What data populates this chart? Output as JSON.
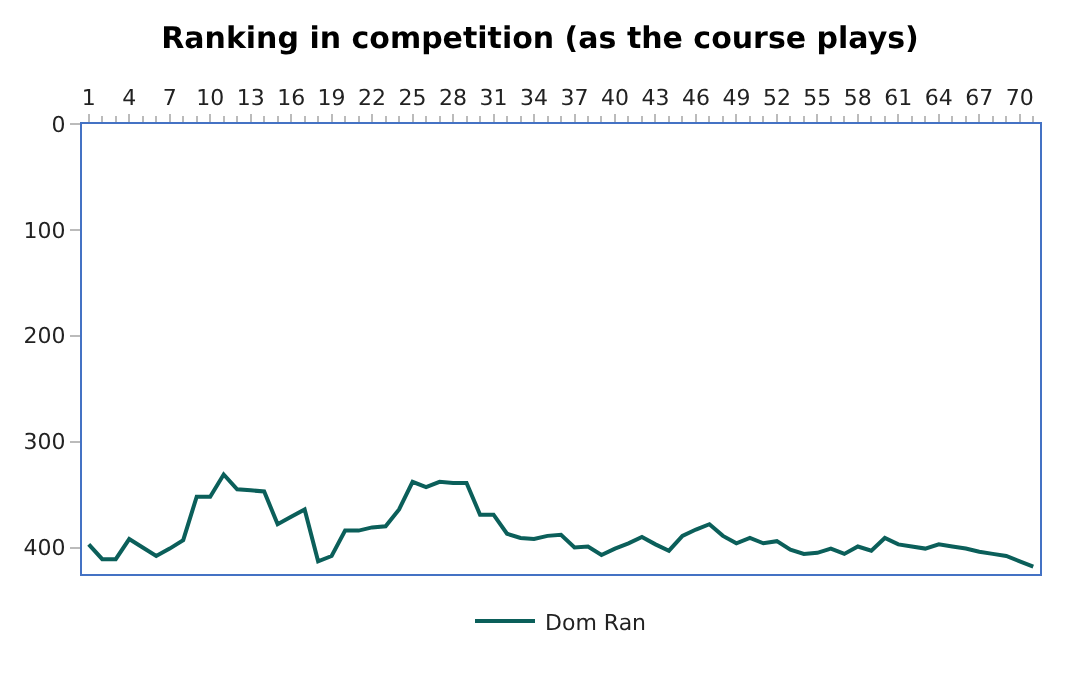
{
  "chart_data": {
    "type": "line",
    "title": "Ranking in competition (as the course plays)",
    "categories": [
      "1",
      null,
      null,
      "4",
      null,
      null,
      "7",
      null,
      null,
      "10",
      null,
      null,
      "13",
      null,
      null,
      "16",
      null,
      null,
      "19",
      null,
      null,
      "22",
      null,
      null,
      "25",
      null,
      null,
      "28",
      null,
      null,
      "31",
      null,
      null,
      "34",
      null,
      null,
      "37",
      null,
      null,
      "40",
      null,
      null,
      "43",
      null,
      null,
      "46",
      null,
      null,
      "49",
      null,
      null,
      "52",
      null,
      null,
      "55",
      null,
      null,
      "58",
      null,
      null,
      "61",
      null,
      null,
      "64",
      null,
      null,
      "67",
      null,
      null,
      "70",
      null
    ],
    "series": [
      {
        "name": "Dom Ran",
        "color": "#0b5f5a",
        "values": [
          397,
          411,
          411,
          392,
          400,
          408,
          401,
          393,
          352,
          352,
          331,
          345,
          346,
          347,
          378,
          371,
          364,
          413,
          408,
          384,
          384,
          381,
          380,
          364,
          338,
          343,
          338,
          339,
          339,
          369,
          369,
          387,
          391,
          392,
          389,
          388,
          400,
          399,
          407,
          401,
          396,
          390,
          397,
          403,
          389,
          383,
          378,
          389,
          396,
          391,
          396,
          394,
          402,
          406,
          405,
          401,
          406,
          399,
          403,
          391,
          397,
          399,
          401,
          397,
          399,
          401,
          404,
          406,
          408,
          413,
          418
        ]
      }
    ],
    "ylim": [
      425,
      0
    ],
    "yticks": [
      0,
      100,
      200,
      300,
      400
    ],
    "legend": "bottom",
    "marker": "none",
    "line_style": "solid"
  }
}
